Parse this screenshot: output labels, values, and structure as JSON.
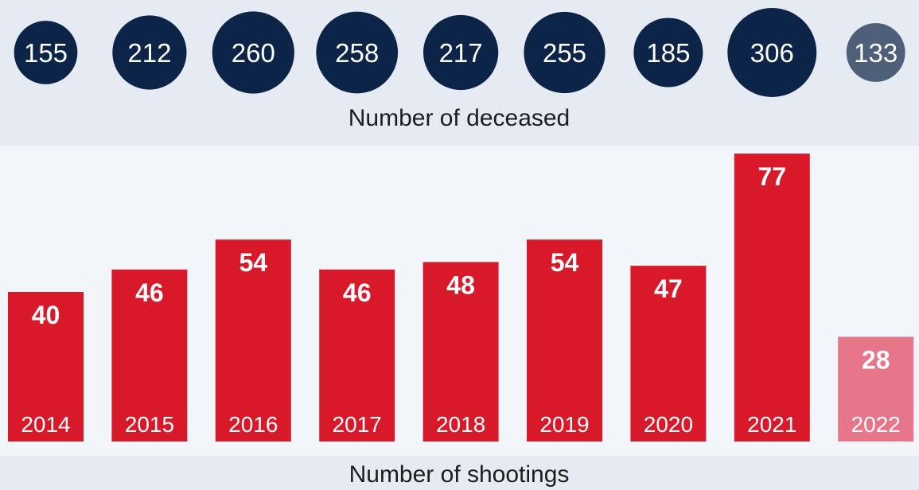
{
  "chart_data": {
    "type": "bar",
    "categories": [
      "2014",
      "2015",
      "2016",
      "2017",
      "2018",
      "2019",
      "2020",
      "2021",
      "2022"
    ],
    "series": [
      {
        "name": "Number of shootings",
        "values": [
          40,
          46,
          54,
          46,
          48,
          54,
          47,
          77,
          28
        ]
      },
      {
        "name": "Number of deceased",
        "values": [
          155,
          212,
          260,
          258,
          217,
          255,
          185,
          306,
          133
        ]
      }
    ],
    "bubbles_label": "Number of deceased",
    "bars_label": "Number of shootings",
    "highlight_last": true,
    "colors": {
      "bar": "#d7192a",
      "bar_highlight": "#e8768a",
      "bubble": "#0c2447",
      "bubble_highlight": "#4d5f79",
      "label_text": "#ffffff",
      "caption_text": "#1d1d1d"
    }
  }
}
